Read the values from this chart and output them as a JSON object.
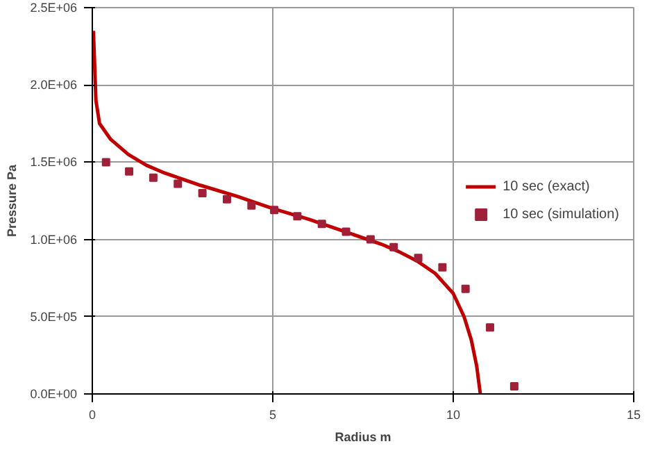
{
  "chart_data": {
    "type": "line",
    "xlabel": "Radius m",
    "ylabel": "Pressure Pa",
    "xlim": [
      0,
      15
    ],
    "xticks": [
      0,
      5,
      10,
      15
    ],
    "ylim": [
      0,
      2500000
    ],
    "yticks": [
      {
        "value": 0,
        "label": "0.0E+00"
      },
      {
        "value": 500000,
        "label": "5.0E+05"
      },
      {
        "value": 1000000,
        "label": "1.0E+06"
      },
      {
        "value": 1500000,
        "label": "1.5E+06"
      },
      {
        "value": 2000000,
        "label": "2.0E+06"
      },
      {
        "value": 2500000,
        "label": "2.5E+06"
      }
    ],
    "grid": true,
    "legend": "right",
    "series": [
      {
        "name": "10 sec (exact)",
        "color": "#c00000",
        "x": [
          0.03,
          0.1,
          0.2,
          0.5,
          1,
          1.5,
          2,
          3,
          4,
          5,
          6,
          7,
          8,
          8.5,
          9,
          9.5,
          10,
          10.3,
          10.5,
          10.65,
          10.75
        ],
        "values": [
          2350000,
          1900000,
          1750000,
          1650000,
          1550000,
          1480000,
          1430000,
          1350000,
          1280000,
          1200000,
          1130000,
          1050000,
          970000,
          920000,
          860000,
          780000,
          650000,
          500000,
          350000,
          180000,
          0
        ]
      },
      {
        "name": "10 sec (simulation)",
        "type": "scatter",
        "marker": "square",
        "color": "#a0203a",
        "x": [
          0.38,
          1.02,
          1.69,
          2.37,
          3.05,
          3.73,
          4.41,
          5.04,
          5.68,
          6.36,
          7.03,
          7.71,
          8.35,
          9.03,
          9.7,
          10.34,
          11.02,
          11.69
        ],
        "values": [
          1500000,
          1440000,
          1400000,
          1360000,
          1300000,
          1260000,
          1220000,
          1190000,
          1150000,
          1100000,
          1050000,
          1000000,
          950000,
          880000,
          820000,
          680000,
          430000,
          50000
        ]
      }
    ]
  }
}
